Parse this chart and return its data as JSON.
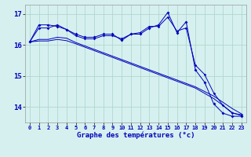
{
  "xlabel": "Graphe des températures (°c)",
  "bg_color": "#d6f0f0",
  "grid_color": "#b0d8cc",
  "line_color": "#0000bb",
  "hours": [
    0,
    1,
    2,
    3,
    4,
    5,
    6,
    7,
    8,
    9,
    10,
    11,
    12,
    13,
    14,
    15,
    16,
    17,
    18,
    19,
    20,
    21,
    22,
    23
  ],
  "series1": [
    16.1,
    16.65,
    16.65,
    16.6,
    16.5,
    16.35,
    16.25,
    16.25,
    16.35,
    16.35,
    16.15,
    16.35,
    16.35,
    16.55,
    16.65,
    17.05,
    16.4,
    16.75,
    15.2,
    14.8,
    14.1,
    13.8,
    13.7,
    13.7
  ],
  "series2": [
    16.1,
    16.55,
    16.55,
    16.65,
    16.5,
    16.3,
    16.2,
    16.2,
    16.3,
    16.3,
    16.2,
    16.35,
    16.4,
    16.6,
    16.6,
    16.9,
    16.45,
    16.55,
    15.35,
    15.05,
    14.45,
    14.05,
    13.8,
    13.75
  ],
  "line1": [
    16.1,
    16.18,
    16.18,
    16.25,
    16.22,
    16.08,
    15.97,
    15.86,
    15.75,
    15.64,
    15.53,
    15.42,
    15.31,
    15.2,
    15.09,
    14.98,
    14.87,
    14.76,
    14.65,
    14.5,
    14.35,
    14.15,
    13.95,
    13.78
  ],
  "line2": [
    16.1,
    16.13,
    16.13,
    16.18,
    16.14,
    16.04,
    15.93,
    15.82,
    15.71,
    15.6,
    15.49,
    15.38,
    15.27,
    15.16,
    15.05,
    14.94,
    14.83,
    14.72,
    14.61,
    14.44,
    14.27,
    14.05,
    13.82,
    13.72
  ],
  "ylim": [
    13.5,
    17.3
  ],
  "yticks": [
    14,
    15,
    16,
    17
  ],
  "xtick_labels": [
    "0",
    "1",
    "2",
    "3",
    "4",
    "5",
    "6",
    "7",
    "8",
    "9",
    "10",
    "11",
    "12",
    "13",
    "14",
    "15",
    "16",
    "17",
    "18",
    "19",
    "20",
    "21",
    "22",
    "23"
  ]
}
